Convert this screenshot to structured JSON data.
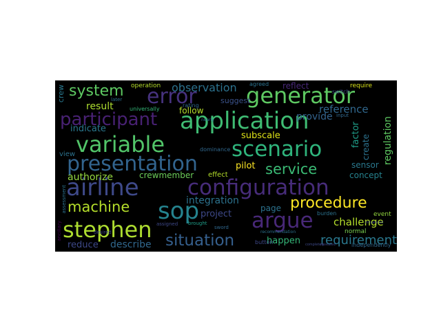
{
  "word_cloud": {
    "background": "#000000",
    "words": [
      {
        "text": "application",
        "color": "#3fbc73"
      },
      {
        "text": "configuration",
        "color": "#472c7a"
      },
      {
        "text": "presentation",
        "color": "#32648e"
      },
      {
        "text": "generator",
        "color": "#5ec962"
      },
      {
        "text": "variable",
        "color": "#52c569"
      },
      {
        "text": "scenario",
        "color": "#2fb47c"
      },
      {
        "text": "airline",
        "color": "#3e4989"
      },
      {
        "text": "participant",
        "color": "#482173"
      },
      {
        "text": "stephen",
        "color": "#addc30"
      },
      {
        "text": "error",
        "color": "#46327e"
      },
      {
        "text": "argue",
        "color": "#482878"
      },
      {
        "text": "sop",
        "color": "#25838e"
      },
      {
        "text": "procedure",
        "color": "#fde725"
      },
      {
        "text": "system",
        "color": "#5ec962"
      },
      {
        "text": "situation",
        "color": "#355f8d"
      },
      {
        "text": "service",
        "color": "#3bbb75"
      },
      {
        "text": "machine",
        "color": "#b5de2b"
      },
      {
        "text": "requirement",
        "color": "#2a788e"
      },
      {
        "text": "observation",
        "color": "#2c728e"
      },
      {
        "text": "reference",
        "color": "#31688e"
      },
      {
        "text": "authorize",
        "color": "#95d840"
      },
      {
        "text": "describe",
        "color": "#31688e"
      },
      {
        "text": "reduce",
        "color": "#3e4989"
      },
      {
        "text": "result",
        "color": "#addc30"
      },
      {
        "text": "indicate",
        "color": "#2a788e"
      },
      {
        "text": "follow",
        "color": "#b5de2b"
      },
      {
        "text": "subscale",
        "color": "#dfe318"
      },
      {
        "text": "provide",
        "color": "#33638d"
      },
      {
        "text": "integration",
        "color": "#2c728e"
      },
      {
        "text": "crewmember",
        "color": "#6ccd5a"
      },
      {
        "text": "project",
        "color": "#3e4989"
      },
      {
        "text": "page",
        "color": "#2c728e"
      },
      {
        "text": "happen",
        "color": "#35b779"
      },
      {
        "text": "challenge",
        "color": "#b5de2b"
      },
      {
        "text": "concept",
        "color": "#26828e"
      },
      {
        "text": "sensor",
        "color": "#2a788e"
      },
      {
        "text": "pilot",
        "color": "#fde725"
      },
      {
        "text": "regulation",
        "color": "#5ec962"
      },
      {
        "text": "factor",
        "color": "#1f9e89"
      },
      {
        "text": "create",
        "color": "#2c728e"
      },
      {
        "text": "reflect",
        "color": "#482878"
      },
      {
        "text": "suggest",
        "color": "#3b528b"
      },
      {
        "text": "require",
        "color": "#d8e219"
      },
      {
        "text": "operation",
        "color": "#b5de2b"
      },
      {
        "text": "agreed",
        "color": "#2c728e"
      },
      {
        "text": "rating",
        "color": "#31688e"
      },
      {
        "text": "event",
        "color": "#95d840"
      },
      {
        "text": "normal",
        "color": "#7ad151"
      },
      {
        "text": "effect",
        "color": "#b5de2b"
      },
      {
        "text": "view",
        "color": "#2c728e"
      },
      {
        "text": "burden",
        "color": "#2c728e"
      },
      {
        "text": "independently",
        "color": "#31688e"
      },
      {
        "text": "crew",
        "color": "#2a788e"
      },
      {
        "text": "universally",
        "color": "#35b779"
      },
      {
        "text": "dominance",
        "color": "#31688e"
      },
      {
        "text": "switch",
        "color": "#3e4989"
      },
      {
        "text": "button",
        "color": "#3e4989"
      },
      {
        "text": "sword",
        "color": "#31688e"
      },
      {
        "text": "brought",
        "color": "#1f9e89"
      },
      {
        "text": "desired",
        "color": "#3e4989"
      },
      {
        "text": "assigned",
        "color": "#3e4989"
      },
      {
        "text": "recommendation",
        "color": "#2c728e"
      },
      {
        "text": "assessment",
        "color": "#2c728e"
      },
      {
        "text": "ancillary",
        "color": "#440154"
      },
      {
        "text": "later",
        "color": "#2c728e"
      },
      {
        "text": "input",
        "color": "#31688e"
      },
      {
        "text": "nearly",
        "color": "#2c728e"
      },
      {
        "text": "completely",
        "color": "#3e4989"
      },
      {
        "text": "revealed",
        "color": "#3e4989"
      },
      {
        "text": "influenced",
        "color": "#3e4989"
      }
    ]
  }
}
